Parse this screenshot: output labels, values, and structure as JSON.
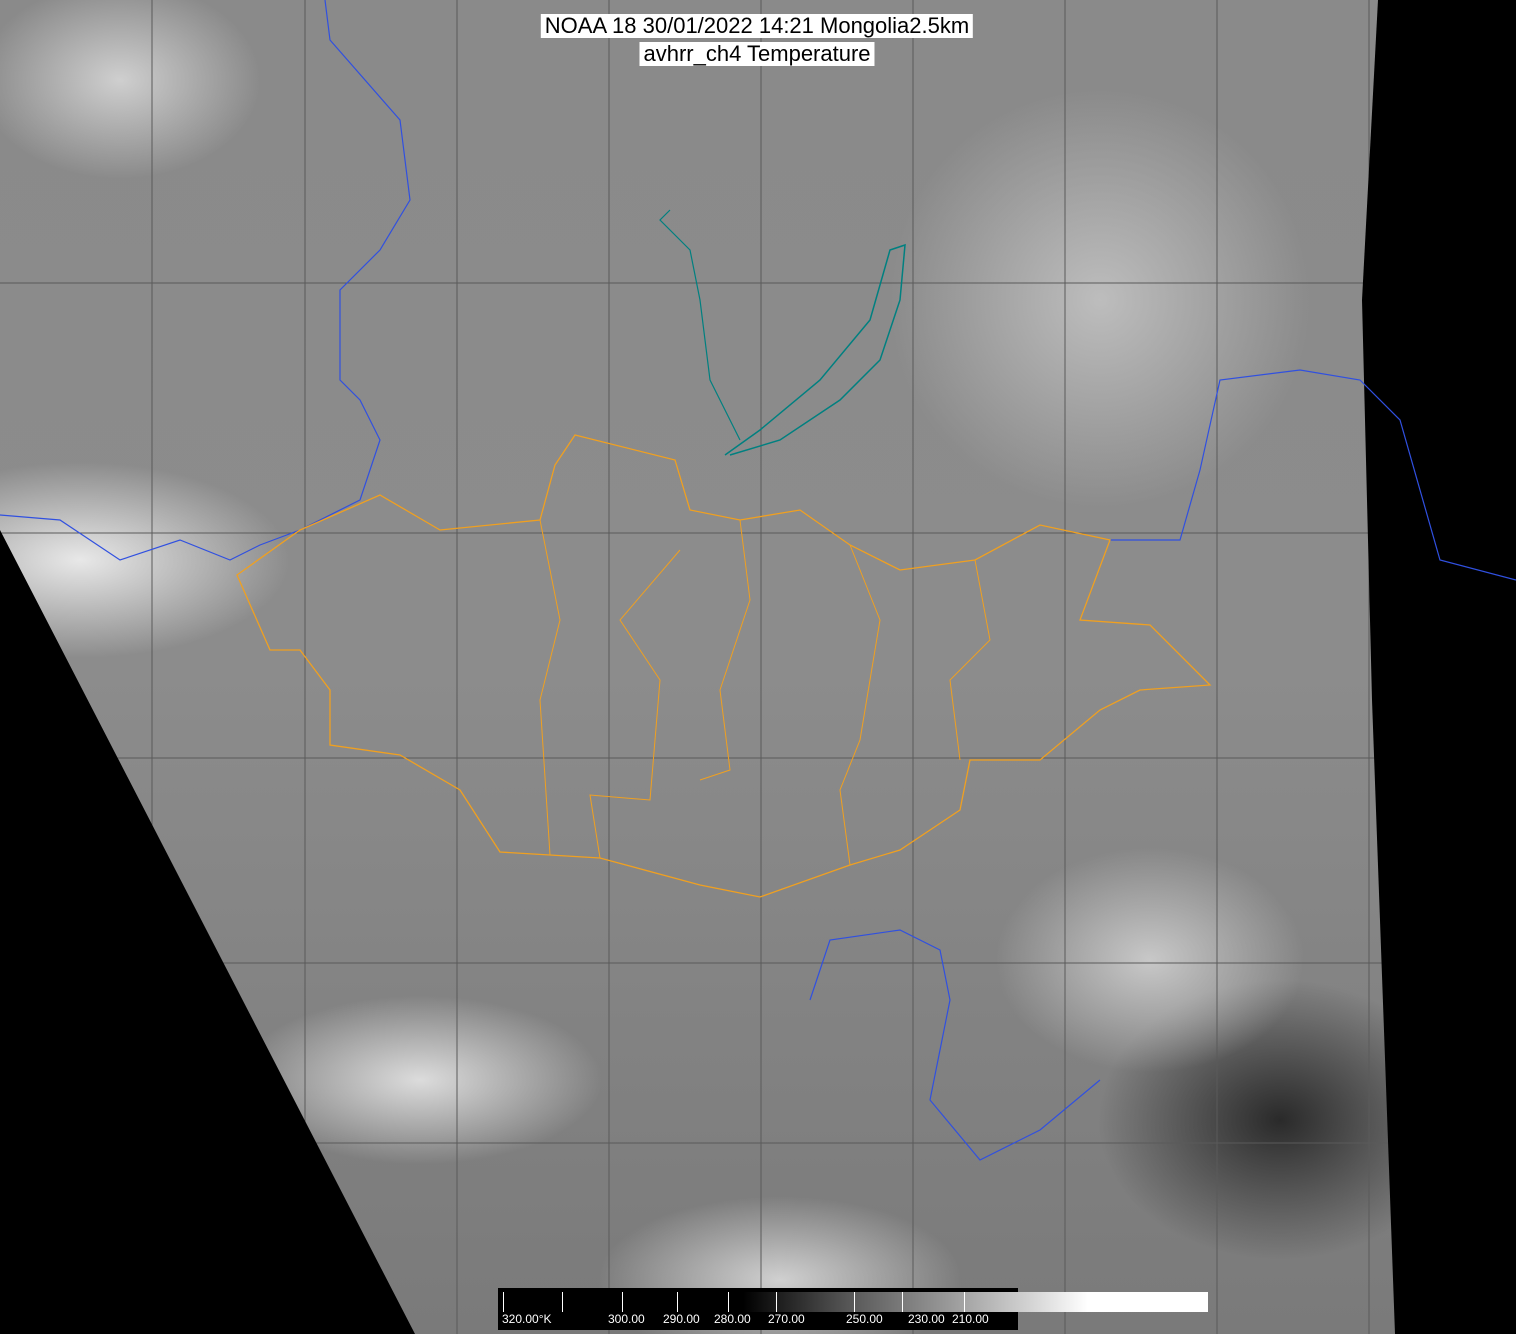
{
  "title": {
    "line1": "NOAA 18 30/01/2022 14:21 Mongolia2.5km",
    "line2": "avhrr_ch4 Temperature"
  },
  "colorbar": {
    "unit_label": "320.00°K",
    "labels": [
      "320.00°K",
      "300.00",
      "290.00",
      "280.00",
      "270.00",
      "250.00",
      "230.00",
      "210.00"
    ],
    "values_k": [
      320,
      300,
      290,
      280,
      270,
      250,
      230,
      210
    ],
    "scale": "grayscale, warm=dark, cold=white"
  },
  "colors": {
    "mongolia_admin_borders": "#f0a020",
    "country_borders": "#3050e0",
    "coastlines_lakes": "#008080",
    "other_borders": "#a06040",
    "grid": "#555555",
    "no_data": "#000000"
  }
}
